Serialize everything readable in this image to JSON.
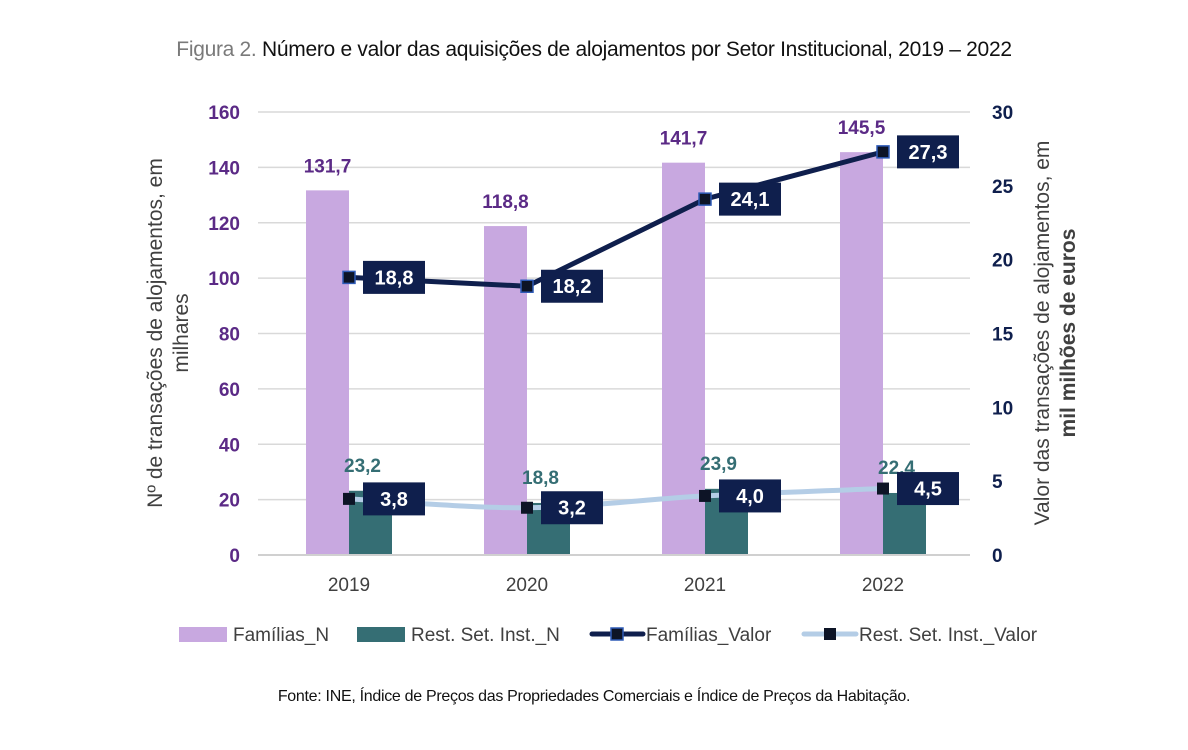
{
  "title": {
    "prefix": "Figura 2.",
    "text": "Número e valor das aquisições de alojamentos por Setor Institucional, 2019 – 2022"
  },
  "source": {
    "label": "Fonte:",
    "text": "INE, Índice de Preços das Propriedades Comerciais e Índice de Preços da Habitação."
  },
  "colors": {
    "familias_n": "#c8a8e0",
    "rest_n": "#356e74",
    "familias_valor": "#0f1f4d",
    "familias_valor_marker_border": "#2f5bb7",
    "rest_valor": "#b4cde6",
    "rest_valor_marker": "#0d1426",
    "label_box": "#0f1f4d",
    "grid": "#d9d9d9"
  },
  "chart_data": {
    "type": "bar",
    "title": "Número e valor das aquisições de alojamentos por Setor Institucional, 2019 – 2022",
    "categories": [
      "2019",
      "2020",
      "2021",
      "2022"
    ],
    "xlabel": "",
    "ylabel": "Nº de transações de alojamentos, em milhares",
    "ylabel_lines": [
      "Nº de transações de alojamentos, em",
      "milhares"
    ],
    "ylim": [
      0,
      160
    ],
    "yticks": [
      0,
      20,
      40,
      60,
      80,
      100,
      120,
      140,
      160
    ],
    "y2label": "Valor das transações de alojamentos, em mil milhões de euros",
    "y2label_lines": [
      "Valor das  transações de alojamentos, em",
      "mil milhões de euros"
    ],
    "y2lim": [
      0,
      30
    ],
    "y2ticks": [
      0,
      5,
      10,
      15,
      20,
      25,
      30
    ],
    "grid": true,
    "legend_position": "bottom",
    "series": [
      {
        "name": "Famílias_N",
        "type": "bar",
        "axis": "left",
        "values": [
          131.7,
          118.8,
          141.7,
          145.5
        ],
        "labels": [
          "131,7",
          "118,8",
          "141,7",
          "145,5"
        ]
      },
      {
        "name": "Rest. Set. Inst._N",
        "type": "bar",
        "axis": "left",
        "values": [
          23.2,
          18.8,
          23.9,
          22.4
        ],
        "labels": [
          "23,2",
          "18,8",
          "23,9",
          "22,4"
        ]
      },
      {
        "name": "Famílias_Valor",
        "type": "line",
        "axis": "right",
        "values": [
          18.8,
          18.2,
          24.1,
          27.3
        ],
        "labels": [
          "18,8",
          "18,2",
          "24,1",
          "27,3"
        ]
      },
      {
        "name": "Rest. Set. Inst._Valor",
        "type": "line",
        "axis": "right",
        "values": [
          3.8,
          3.2,
          4.0,
          4.5
        ],
        "labels": [
          "3,8",
          "3,2",
          "4,0",
          "4,5"
        ]
      }
    ]
  }
}
